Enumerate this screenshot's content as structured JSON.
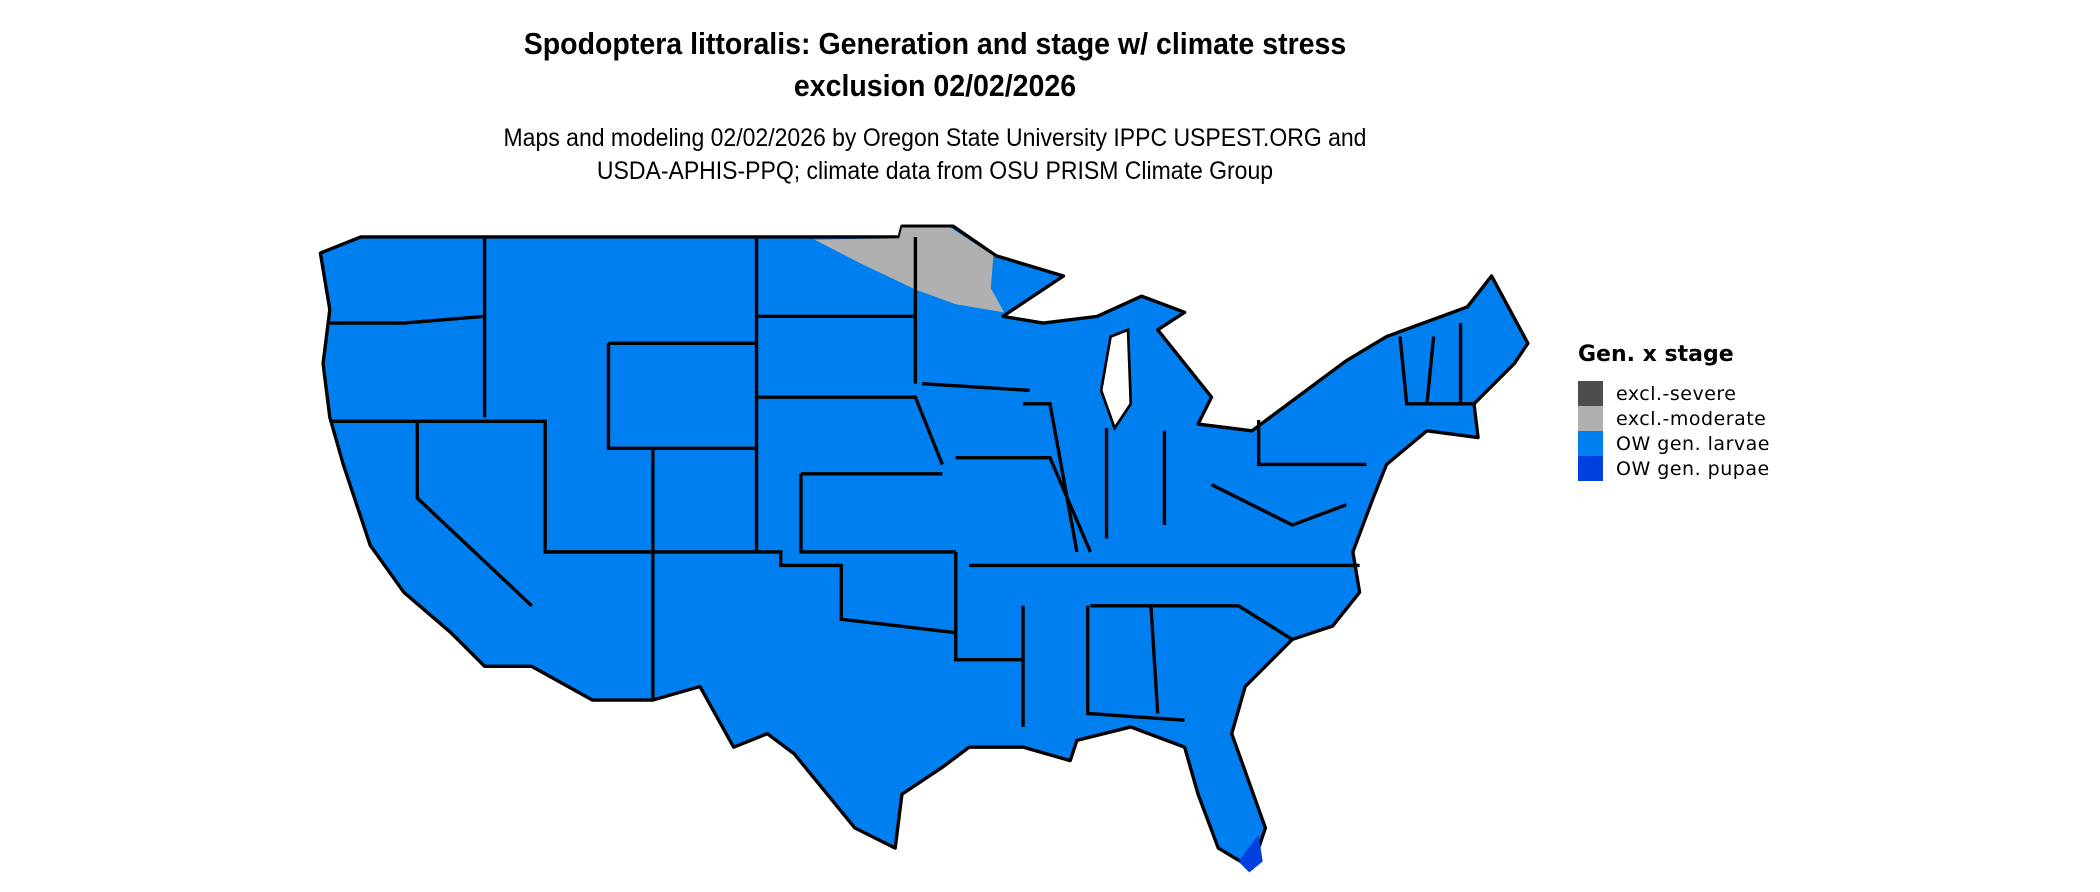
{
  "title": {
    "line1": "Spodoptera littoralis: Generation and stage w/ climate stress",
    "line2": "exclusion 02/02/2026"
  },
  "subtitle": {
    "line1": "Maps and modeling 02/02/2026 by Oregon State University IPPC USPEST.ORG and",
    "line2": "USDA-APHIS-PPQ; climate data from OSU PRISM Climate Group"
  },
  "legend": {
    "title": "Gen. x stage",
    "items": [
      {
        "label": "excl.-severe",
        "color": "#4d4d4d"
      },
      {
        "label": "excl.-moderate",
        "color": "#b0b0b0"
      },
      {
        "label": "OW gen. larvae",
        "color": "#007ff0"
      },
      {
        "label": "OW gen. pupae",
        "color": "#0040e0"
      }
    ]
  },
  "map": {
    "region": "Contiguous United States",
    "dominant_class": "OW gen. larvae",
    "gray_area_class": "excl.-moderate",
    "pupae_area": "South Florida tip"
  }
}
